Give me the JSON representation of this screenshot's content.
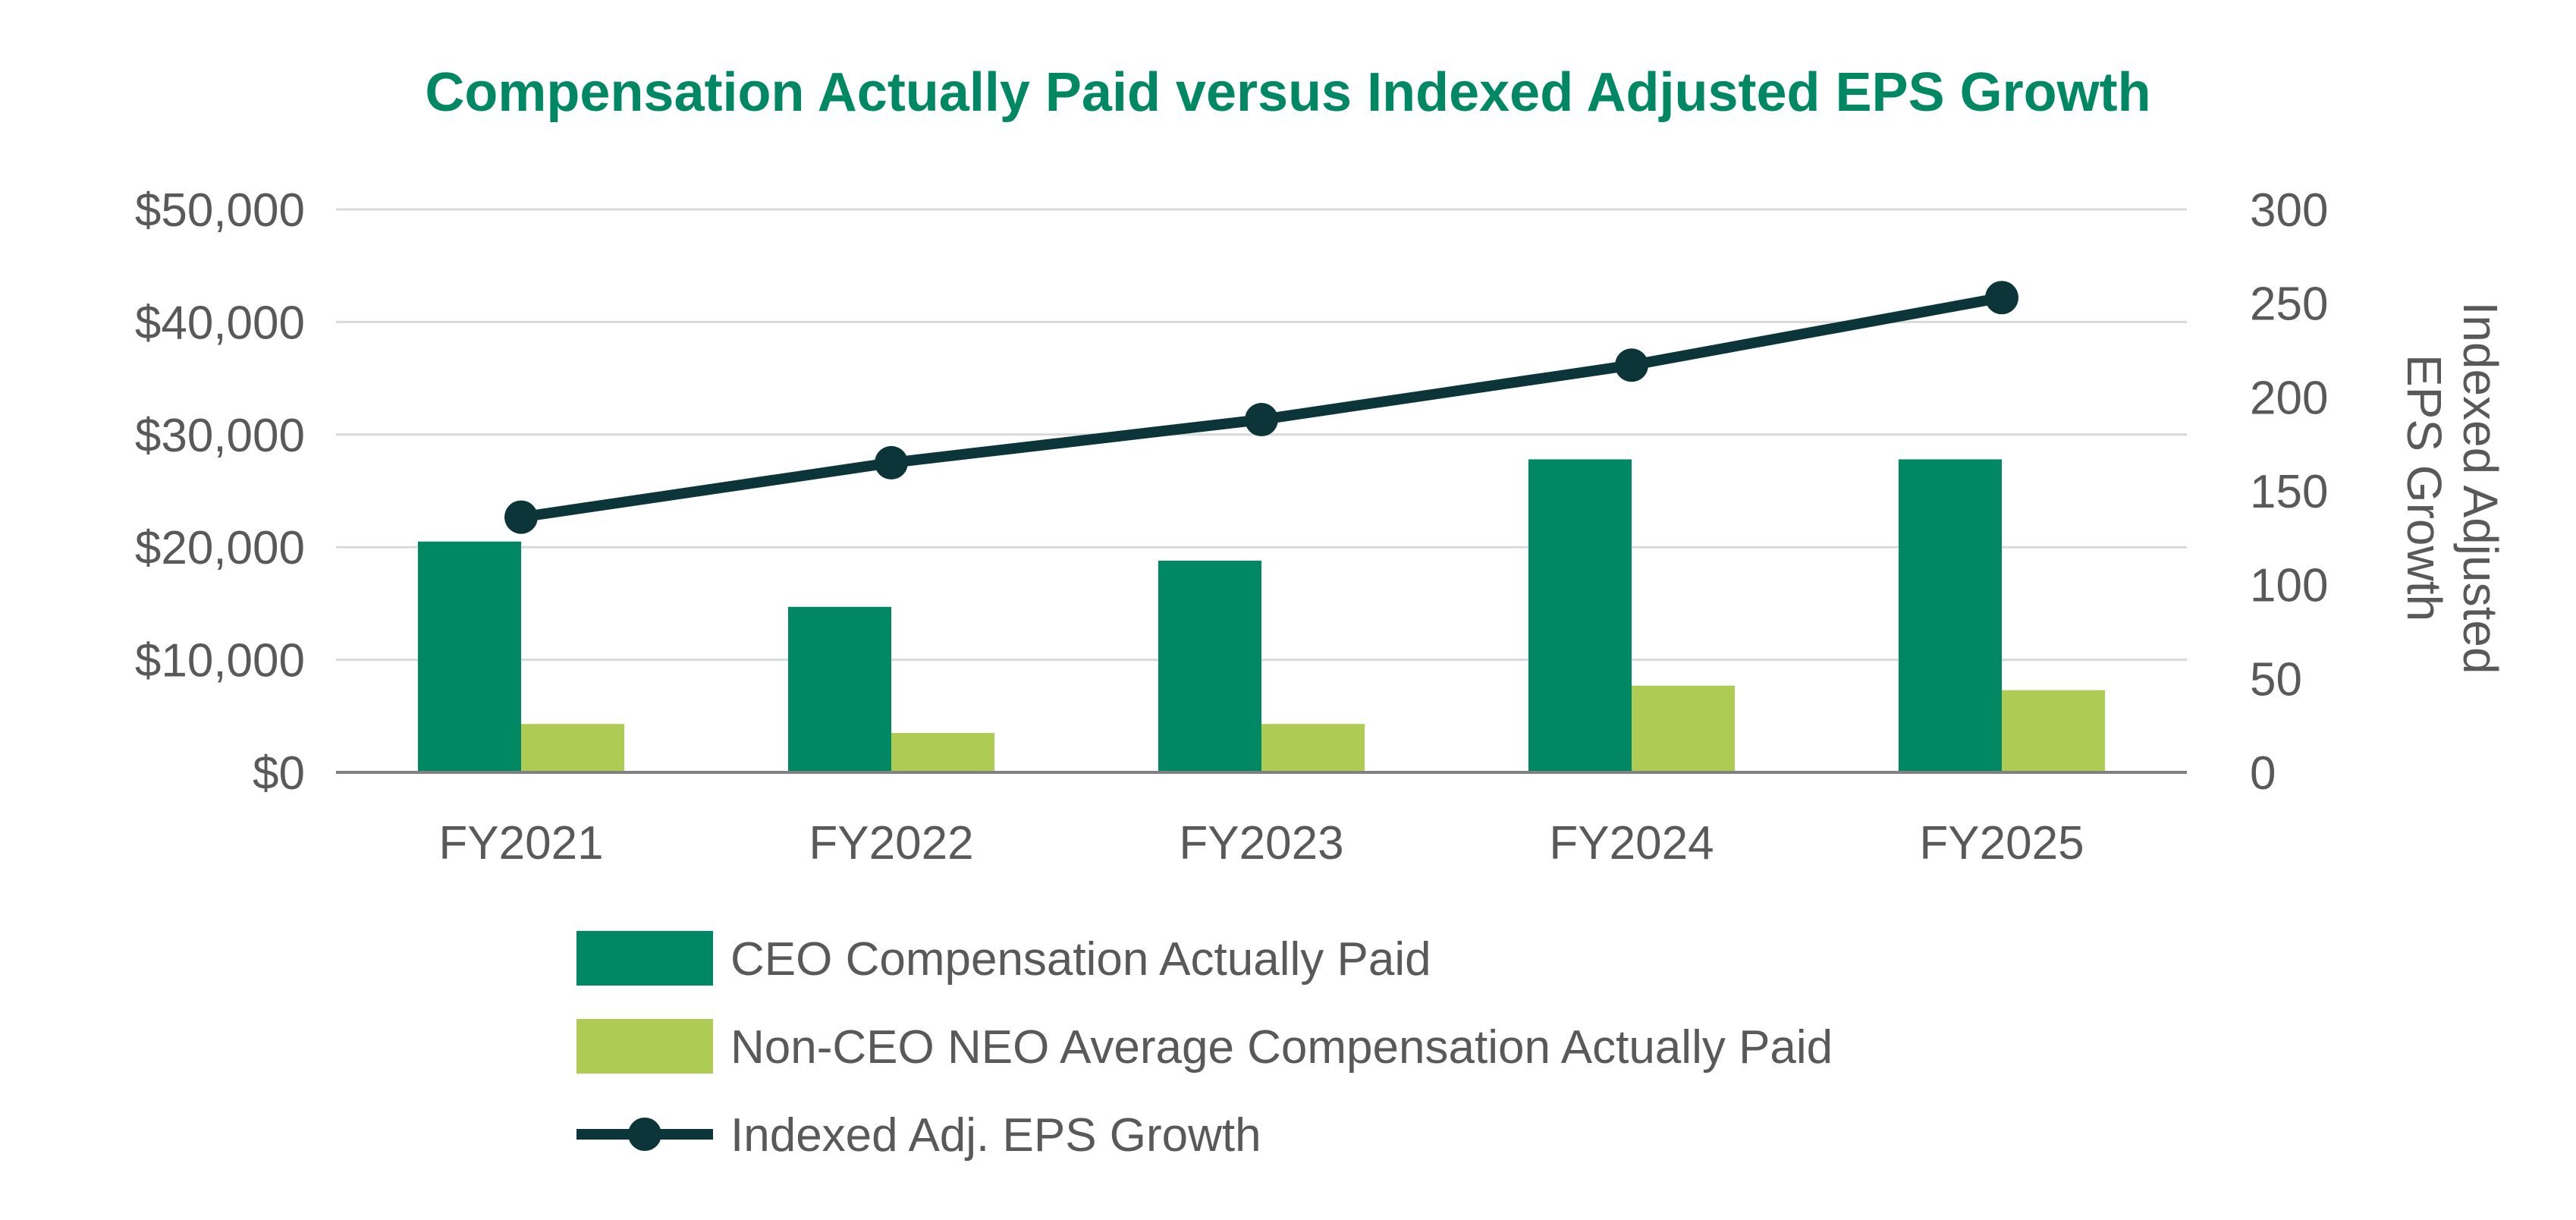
{
  "colors": {
    "title": "#008864",
    "ceo_bar": "#008864",
    "neo_bar": "#AECC53",
    "eps_line": "#0B3538",
    "gridline": "#D9D9D9",
    "baseline": "#808080",
    "text": "#595959"
  },
  "chart_data": {
    "type": "bar",
    "title": "Compensation Actually Paid versus Indexed Adjusted EPS Growth",
    "categories": [
      "FY2021",
      "FY2022",
      "FY2023",
      "FY2024",
      "FY2025"
    ],
    "y_left": {
      "min": 0,
      "max": 50000,
      "ticks": [
        0,
        10000,
        20000,
        30000,
        40000,
        50000
      ],
      "tick_labels": [
        "$0",
        "$10,000",
        "$20,000",
        "$30,000",
        "$40,000",
        "$50,000"
      ]
    },
    "y_right": {
      "min": 0,
      "max": 300,
      "ticks": [
        0,
        50,
        100,
        150,
        200,
        250,
        300
      ],
      "tick_labels": [
        "0",
        "50",
        "100",
        "150",
        "200",
        "250",
        "300"
      ],
      "label_lines": [
        "Indexed Adjusted",
        "EPS Growth"
      ]
    },
    "grid": true,
    "series": [
      {
        "name": "CEO Compensation Actually Paid",
        "kind": "bar",
        "axis": "left",
        "values": [
          20500,
          14700,
          18800,
          27800,
          27800
        ]
      },
      {
        "name": "Non-CEO NEO Average Compensation Actually Paid",
        "kind": "bar",
        "axis": "left",
        "values": [
          4300,
          3500,
          4300,
          7700,
          7300
        ]
      },
      {
        "name": "Indexed Adj. EPS Growth",
        "kind": "line",
        "axis": "right",
        "values": [
          136,
          165,
          188,
          217,
          253
        ]
      }
    ],
    "legend_position": "bottom"
  }
}
